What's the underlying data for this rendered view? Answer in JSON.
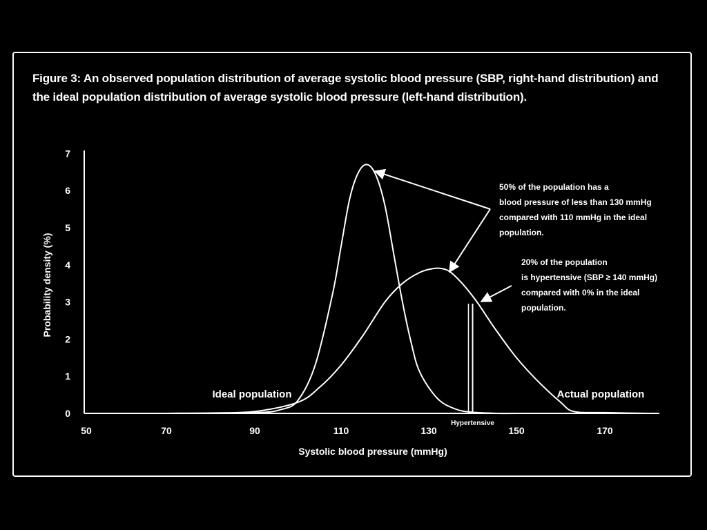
{
  "caption": "Figure 3: An observed population distribution of average systolic blood pressure (SBP, right-hand distribution) and the ideal population distribution of average systolic blood pressure (left-hand distribution).",
  "chart_data": {
    "type": "line",
    "xlabel": "Systolic blood pressure (mmHg)",
    "ylabel": "Probability density (%)",
    "xlim": [
      50,
      180
    ],
    "ylim": [
      0,
      7
    ],
    "x_ticks": [
      "50",
      "70",
      "90",
      "110",
      "130",
      "150",
      "170"
    ],
    "y_ticks": [
      "0",
      "1",
      "2",
      "3",
      "4",
      "5",
      "6",
      "7"
    ],
    "grid": false,
    "series": [
      {
        "name": "Ideal population",
        "x": [
          70,
          90,
          96,
          100,
          104,
          108,
          110,
          112,
          114,
          116,
          118,
          120,
          122,
          124,
          126,
          128,
          132,
          136,
          140,
          146,
          150,
          170
        ],
        "y": [
          0,
          0.02,
          0.1,
          0.35,
          1.3,
          3.2,
          4.5,
          5.8,
          6.5,
          6.7,
          6.4,
          5.6,
          4.3,
          3.0,
          1.9,
          1.1,
          0.4,
          0.12,
          0.03,
          0,
          0,
          0
        ]
      },
      {
        "name": "Actual population",
        "x": [
          70,
          80,
          90,
          100,
          105,
          110,
          115,
          120,
          124,
          128,
          131,
          133,
          135,
          138,
          141,
          145,
          150,
          155,
          160,
          163,
          170,
          180
        ],
        "y": [
          0,
          0.01,
          0.05,
          0.3,
          0.7,
          1.3,
          2.1,
          3.0,
          3.5,
          3.8,
          3.9,
          3.9,
          3.8,
          3.45,
          3.0,
          2.3,
          1.5,
          0.85,
          0.3,
          0.05,
          0.02,
          0
        ]
      }
    ],
    "reference_line": {
      "x": 140,
      "label": "Hypertensive"
    },
    "annotations": [
      {
        "lines": [
          "50% of the population has a",
          "blood pressure of less than 130 mmHg",
          "compared with 110 mmHg in the ideal",
          "population."
        ]
      },
      {
        "lines": [
          "20% of the population",
          "is hypertensive (SBP  ≥ 140 mmHg)",
          "compared with 0% in the ideal",
          "population."
        ]
      }
    ],
    "curve_labels": [
      "Ideal population",
      "Actual population"
    ]
  }
}
